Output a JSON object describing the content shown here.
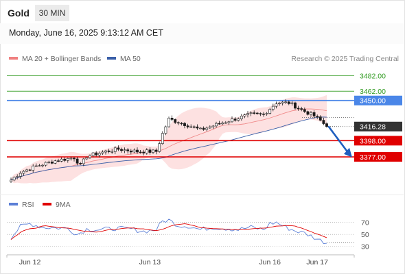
{
  "header": {
    "title": "Gold",
    "timeframe": "30 MIN",
    "datetime": "Monday, June 16, 2025 9:13:12 AM CET"
  },
  "legend": {
    "items": [
      {
        "label": "MA 20 + Bollinger Bands",
        "color": "#f08080"
      },
      {
        "label": "MA 50",
        "color": "#3a5fa8"
      }
    ],
    "source": "Research © 2025 Trading Central"
  },
  "rsi_legend": {
    "items": [
      {
        "label": "RSI",
        "color": "#5b7fd6"
      },
      {
        "label": "9MA",
        "color": "#e00000"
      }
    ]
  },
  "colors": {
    "support": "#e00000",
    "resistance": "#4a86e8",
    "target": "#2f9a1f",
    "last_price": "#333333",
    "arrow": "#1f5fbf",
    "candle": "#1a1a1a",
    "band_fill": "#fde1e1"
  },
  "chart_data": {
    "type": "candlestick",
    "ylim": [
      3330,
      3495
    ],
    "x_ticks": [
      {
        "label": "Jun 12",
        "bar": 6
      },
      {
        "label": "Jun 13",
        "bar": 44
      },
      {
        "label": "Jun 16",
        "bar": 82
      },
      {
        "label": "Jun 17",
        "bar": 97
      }
    ],
    "bars": 103,
    "anchors": [
      [
        0,
        3347
      ],
      [
        3,
        3357
      ],
      [
        8,
        3365
      ],
      [
        14,
        3372
      ],
      [
        20,
        3376
      ],
      [
        22,
        3366
      ],
      [
        24,
        3378
      ],
      [
        30,
        3384
      ],
      [
        34,
        3387
      ],
      [
        40,
        3384
      ],
      [
        46,
        3384
      ],
      [
        48,
        3407
      ],
      [
        50,
        3426
      ],
      [
        56,
        3418
      ],
      [
        60,
        3412
      ],
      [
        66,
        3420
      ],
      [
        70,
        3425
      ],
      [
        76,
        3432
      ],
      [
        80,
        3432
      ],
      [
        84,
        3447
      ],
      [
        88,
        3447
      ],
      [
        92,
        3438
      ],
      [
        96,
        3430
      ],
      [
        98,
        3424
      ],
      [
        100,
        3416.28
      ]
    ],
    "levels": [
      {
        "label": "3482.00",
        "value": 3482,
        "kind": "target"
      },
      {
        "label": "3462.00",
        "value": 3462,
        "kind": "target"
      },
      {
        "label": "3450.00",
        "value": 3450,
        "kind": "resistance"
      },
      {
        "label": "3398.00",
        "value": 3398,
        "kind": "support"
      },
      {
        "label": "3377.00",
        "value": 3377,
        "kind": "support"
      }
    ],
    "last_price": {
      "label": "3416.28",
      "value": 3416.28
    },
    "forecast_arrow": {
      "from_value": 3416,
      "to_value": 3379
    },
    "rsi": {
      "ylim": [
        25,
        80
      ],
      "levels": [
        {
          "label": "70",
          "value": 70
        },
        {
          "label": "50",
          "value": 50
        },
        {
          "label": "30",
          "value": 30
        }
      ],
      "anchors": [
        [
          0,
          45
        ],
        [
          3,
          63
        ],
        [
          6,
          68
        ],
        [
          10,
          62
        ],
        [
          14,
          61
        ],
        [
          18,
          60
        ],
        [
          21,
          50
        ],
        [
          24,
          59
        ],
        [
          28,
          58
        ],
        [
          33,
          60
        ],
        [
          38,
          59
        ],
        [
          42,
          55
        ],
        [
          46,
          58
        ],
        [
          48,
          72
        ],
        [
          50,
          74
        ],
        [
          53,
          65
        ],
        [
          56,
          64
        ],
        [
          60,
          58
        ],
        [
          64,
          62
        ],
        [
          68,
          60
        ],
        [
          72,
          58
        ],
        [
          76,
          62
        ],
        [
          80,
          58
        ],
        [
          82,
          68
        ],
        [
          84,
          70
        ],
        [
          87,
          62
        ],
        [
          90,
          56
        ],
        [
          93,
          52
        ],
        [
          96,
          45
        ],
        [
          98,
          40
        ],
        [
          100,
          36
        ]
      ]
    }
  }
}
